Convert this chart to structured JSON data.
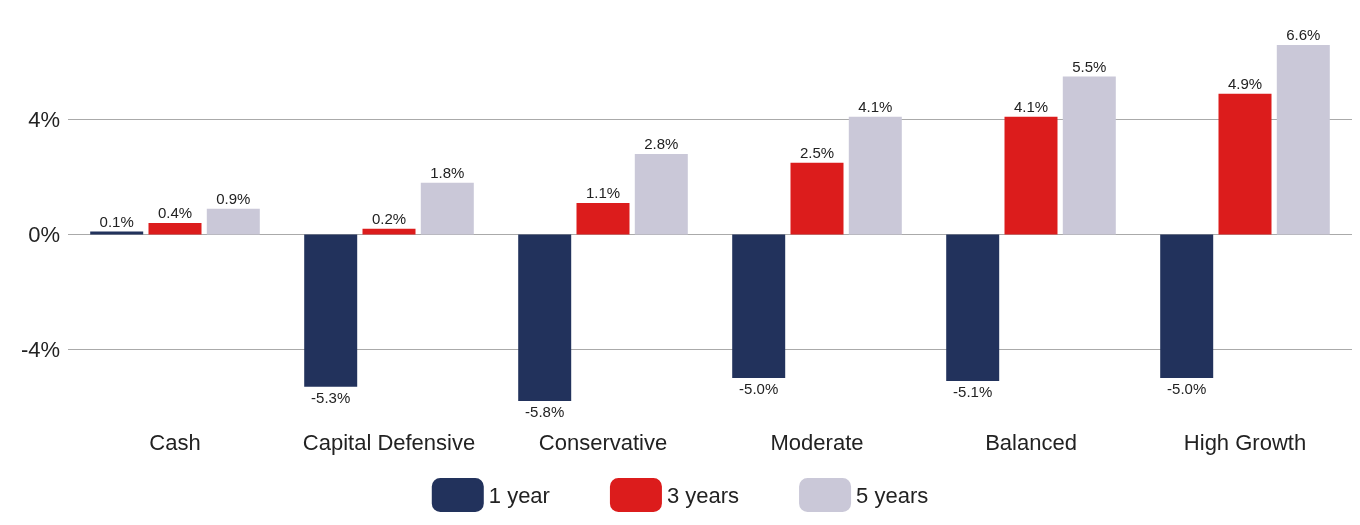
{
  "chart_data": {
    "type": "bar",
    "categories": [
      "Cash",
      "Capital Defensive",
      "Conservative",
      "Moderate",
      "Balanced",
      "High Growth"
    ],
    "series": [
      {
        "name": "1 year",
        "color": "#22325c",
        "values": [
          0.1,
          -5.3,
          -5.8,
          -5.0,
          -5.1,
          -5.0
        ],
        "value_labels": [
          "0.1%",
          "-5.3%",
          "-5.8%",
          "-5.0%",
          "-5.1%",
          "-5.0%"
        ]
      },
      {
        "name": "3 years",
        "color": "#dc1c1c",
        "values": [
          0.4,
          0.2,
          1.1,
          2.5,
          4.1,
          4.9
        ],
        "value_labels": [
          "0.4%",
          "0.2%",
          "1.1%",
          "2.5%",
          "4.1%",
          "4.9%"
        ]
      },
      {
        "name": "5 years",
        "color": "#cac8d8",
        "values": [
          0.9,
          1.8,
          2.8,
          4.1,
          5.5,
          6.6
        ],
        "value_labels": [
          "0.9%",
          "1.8%",
          "2.8%",
          "4.1%",
          "5.5%",
          "6.6%"
        ]
      }
    ],
    "ylim": [
      -5.8,
      6.6
    ],
    "yticks": [
      {
        "value": -4,
        "label": "-4%"
      },
      {
        "value": 0,
        "label": "0%"
      },
      {
        "value": 4,
        "label": "4%"
      }
    ],
    "grid": "y",
    "legend": "bottom"
  }
}
